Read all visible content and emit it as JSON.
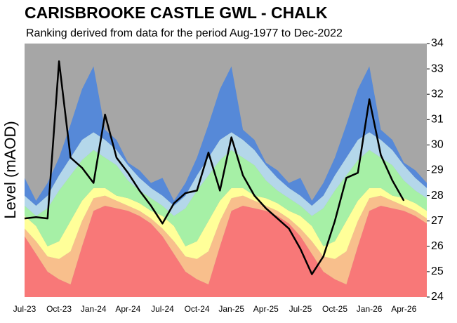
{
  "chart_data": {
    "type": "area",
    "title": "CARISBROOKE CASTLE GWL - CHALK",
    "subtitle": "Ranking derived from data for the period Aug-1977 to Dec-2022",
    "ylabel": "Level (mAOD)",
    "y_axis_side": "right",
    "background_color": "#a6a6a6",
    "categories": [
      "Jul-23",
      null,
      null,
      "Oct-23",
      null,
      null,
      "Jan-24",
      null,
      null,
      "Apr-24",
      null,
      null,
      "Jul-24",
      null,
      null,
      "Oct-24",
      null,
      null,
      "Jan-25",
      null,
      null,
      "Apr-25",
      null,
      null,
      "Jul-25",
      null,
      null,
      "Oct-25",
      null,
      null,
      "Jan-26",
      null,
      null,
      "Apr-26",
      null,
      null
    ],
    "ylim": [
      24,
      34
    ],
    "yticks": [
      24,
      25,
      26,
      27,
      28,
      29,
      30,
      31,
      32,
      33,
      34
    ],
    "series": [
      {
        "type": "area",
        "color": "#f87878",
        "values": [
          26.4,
          25.7,
          25.0,
          24.7,
          24.5,
          26.0,
          27.4,
          27.6,
          27.5,
          27.4,
          27.2,
          26.9,
          26.4,
          25.7,
          25.0,
          24.7,
          24.5,
          26.0,
          27.4,
          27.6,
          27.5,
          27.4,
          27.2,
          26.9,
          26.4,
          25.7,
          25.0,
          24.7,
          24.5,
          26.0,
          27.4,
          27.6,
          27.5,
          27.4,
          27.2,
          26.9
        ]
      },
      {
        "type": "area",
        "color": "#f8bf8c",
        "values": [
          26.7,
          26.2,
          25.6,
          25.5,
          25.8,
          27.0,
          27.9,
          28.0,
          27.8,
          27.6,
          27.4,
          27.1,
          26.7,
          26.2,
          25.6,
          25.5,
          25.8,
          27.0,
          27.9,
          28.0,
          27.8,
          27.6,
          27.4,
          27.1,
          26.7,
          26.2,
          25.6,
          25.5,
          25.8,
          27.0,
          27.9,
          28.0,
          27.8,
          27.6,
          27.4,
          27.1
        ]
      },
      {
        "type": "area",
        "color": "#ffff99",
        "values": [
          27.2,
          26.8,
          26.0,
          26.2,
          27.0,
          27.8,
          28.3,
          28.3,
          28.0,
          27.9,
          27.7,
          27.4,
          27.2,
          26.8,
          26.0,
          26.2,
          27.0,
          27.8,
          28.3,
          28.3,
          28.0,
          27.9,
          27.7,
          27.4,
          27.2,
          26.8,
          26.0,
          26.2,
          27.0,
          27.8,
          28.3,
          28.3,
          28.0,
          27.9,
          27.7,
          27.4
        ]
      },
      {
        "type": "area",
        "color": "#a6f0a6",
        "values": [
          27.6,
          27.2,
          27.5,
          28.2,
          28.8,
          29.4,
          29.8,
          29.5,
          29.2,
          28.6,
          28.2,
          27.9,
          27.6,
          27.2,
          27.5,
          28.2,
          28.8,
          29.4,
          29.8,
          29.5,
          29.2,
          28.6,
          28.2,
          27.9,
          27.6,
          27.2,
          27.5,
          28.2,
          28.8,
          29.4,
          29.8,
          29.5,
          29.2,
          28.6,
          28.2,
          27.9
        ]
      },
      {
        "type": "area",
        "color": "#b4d7ea",
        "values": [
          28.0,
          27.6,
          28.0,
          28.8,
          29.5,
          30.2,
          30.5,
          30.2,
          29.8,
          29.2,
          28.7,
          28.3,
          28.0,
          27.6,
          28.0,
          28.8,
          29.5,
          30.2,
          30.5,
          30.2,
          29.8,
          29.2,
          28.7,
          28.3,
          28.0,
          27.6,
          28.0,
          28.8,
          29.5,
          30.2,
          30.5,
          30.2,
          29.8,
          29.2,
          28.7,
          28.3
        ]
      },
      {
        "type": "area",
        "color": "#5689d8",
        "values": [
          28.7,
          27.8,
          28.5,
          29.5,
          30.8,
          32.2,
          33.1,
          30.6,
          30.2,
          29.3,
          29.0,
          28.5,
          28.7,
          27.8,
          28.5,
          29.5,
          30.8,
          32.2,
          33.1,
          30.6,
          30.2,
          29.3,
          29.0,
          28.5,
          28.7,
          27.8,
          28.5,
          29.5,
          30.8,
          32.2,
          33.1,
          30.6,
          30.2,
          29.3,
          29.0,
          28.5
        ]
      },
      {
        "type": "line",
        "color": "#000000",
        "values": [
          27.1,
          27.15,
          27.1,
          33.3,
          29.5,
          29.1,
          28.5,
          31.2,
          29.5,
          28.9,
          28.2,
          27.6,
          26.9,
          27.7,
          28.1,
          28.2,
          29.7,
          28.2,
          30.3,
          28.8,
          28.0,
          27.5,
          27.1,
          26.7,
          25.9,
          24.9,
          25.6,
          27.0,
          28.7,
          28.9,
          31.8,
          29.6,
          28.6,
          27.8,
          null,
          null
        ]
      }
    ]
  }
}
